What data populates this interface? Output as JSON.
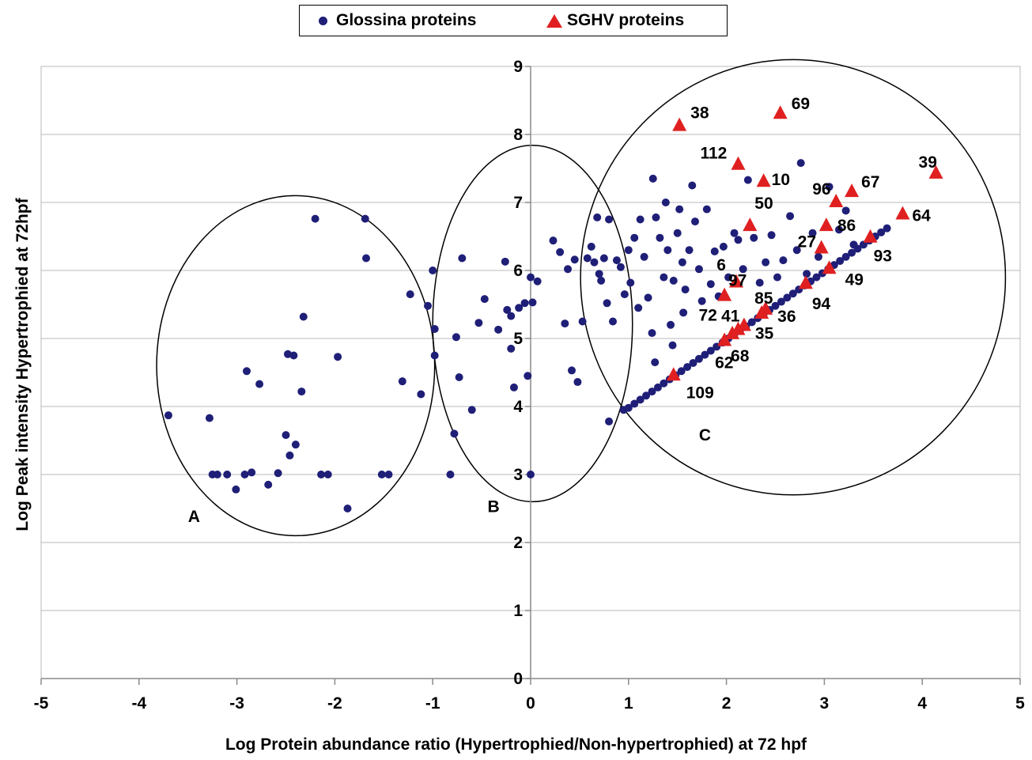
{
  "colors": {
    "glossina": "#1f1f78",
    "sghv": "#e02020",
    "grid": "#b8b8b8",
    "axis": "#8a8a8a"
  },
  "chart_data": {
    "type": "scatter",
    "xlabel": "Log Protein abundance ratio (Hypertrophied/Non-hypertrophied) at 72 hpf",
    "ylabel": "Log Peak intensity Hypertrophied at 72hpf",
    "xlim": [
      -5,
      5
    ],
    "ylim": [
      0,
      9
    ],
    "x_ticks": [
      "-5",
      "-4",
      "-3",
      "-2",
      "-1",
      "0",
      "1",
      "2",
      "3",
      "4",
      "5"
    ],
    "y_ticks": [
      "0",
      "1",
      "2",
      "3",
      "4",
      "5",
      "6",
      "7",
      "8",
      "9"
    ],
    "grid": "horizontal",
    "legend": {
      "placement": "top-center",
      "entries": [
        "Glossina proteins",
        "SGHV proteins"
      ]
    },
    "series": [
      {
        "name": "Glossina proteins",
        "marker": "circle",
        "points": [
          [
            -3.7,
            3.87
          ],
          [
            -3.28,
            3.83
          ],
          [
            -3.25,
            3.0
          ],
          [
            -3.2,
            3.0
          ],
          [
            -3.1,
            3.0
          ],
          [
            -3.01,
            2.78
          ],
          [
            -2.92,
            3.0
          ],
          [
            -2.9,
            4.52
          ],
          [
            -2.85,
            3.03
          ],
          [
            -2.77,
            4.33
          ],
          [
            -2.68,
            2.85
          ],
          [
            -2.58,
            3.02
          ],
          [
            -2.5,
            3.58
          ],
          [
            -2.48,
            4.77
          ],
          [
            -2.46,
            3.28
          ],
          [
            -2.42,
            4.75
          ],
          [
            -2.4,
            3.44
          ],
          [
            -2.34,
            4.22
          ],
          [
            -2.32,
            5.32
          ],
          [
            -2.2,
            6.76
          ],
          [
            -2.14,
            3.0
          ],
          [
            -2.07,
            3.0
          ],
          [
            -1.97,
            4.73
          ],
          [
            -1.87,
            2.5
          ],
          [
            -1.69,
            6.76
          ],
          [
            -1.68,
            6.18
          ],
          [
            -1.52,
            3.0
          ],
          [
            -1.45,
            3.0
          ],
          [
            -1.31,
            4.37
          ],
          [
            -1.23,
            5.65
          ],
          [
            -1.12,
            4.18
          ],
          [
            -1.05,
            5.48
          ],
          [
            -1.0,
            6.0
          ],
          [
            -0.98,
            5.14
          ],
          [
            -0.98,
            4.75
          ],
          [
            -0.82,
            3.0
          ],
          [
            -0.78,
            3.6
          ],
          [
            -0.76,
            5.02
          ],
          [
            -0.73,
            4.43
          ],
          [
            -0.6,
            3.95
          ],
          [
            -0.53,
            5.23
          ],
          [
            -0.47,
            5.58
          ],
          [
            -0.33,
            5.13
          ],
          [
            -0.26,
            6.13
          ],
          [
            -0.24,
            5.42
          ],
          [
            -0.2,
            5.33
          ],
          [
            -0.2,
            4.85
          ],
          [
            -0.17,
            4.28
          ],
          [
            -0.12,
            5.45
          ],
          [
            -0.06,
            5.52
          ],
          [
            -0.03,
            4.45
          ],
          [
            0.0,
            5.9
          ],
          [
            0.0,
            3.0
          ],
          [
            0.02,
            5.53
          ],
          [
            0.07,
            5.84
          ],
          [
            0.23,
            6.44
          ],
          [
            0.3,
            6.27
          ],
          [
            0.35,
            5.22
          ],
          [
            0.38,
            6.02
          ],
          [
            0.42,
            4.53
          ],
          [
            0.45,
            6.16
          ],
          [
            0.48,
            4.36
          ],
          [
            0.53,
            5.25
          ],
          [
            0.58,
            6.18
          ],
          [
            0.62,
            6.35
          ],
          [
            0.65,
            6.12
          ],
          [
            0.68,
            6.78
          ],
          [
            0.7,
            5.95
          ],
          [
            0.72,
            5.85
          ],
          [
            0.75,
            6.18
          ],
          [
            0.78,
            5.52
          ],
          [
            0.8,
            6.75
          ],
          [
            0.84,
            5.25
          ],
          [
            0.88,
            6.15
          ],
          [
            0.92,
            6.05
          ],
          [
            0.96,
            5.65
          ],
          [
            1.0,
            6.3
          ],
          [
            1.02,
            5.82
          ],
          [
            1.06,
            6.48
          ],
          [
            1.1,
            5.45
          ],
          [
            1.12,
            6.75
          ],
          [
            1.16,
            6.2
          ],
          [
            1.2,
            5.6
          ],
          [
            1.25,
            7.35
          ],
          [
            1.28,
            6.78
          ],
          [
            1.32,
            6.48
          ],
          [
            1.36,
            5.9
          ],
          [
            1.38,
            7.0
          ],
          [
            1.4,
            6.3
          ],
          [
            1.43,
            5.2
          ],
          [
            1.46,
            5.85
          ],
          [
            1.5,
            6.55
          ],
          [
            1.52,
            6.9
          ],
          [
            1.55,
            6.12
          ],
          [
            1.58,
            5.72
          ],
          [
            1.62,
            6.3
          ],
          [
            1.65,
            7.25
          ],
          [
            1.68,
            6.72
          ],
          [
            1.72,
            6.02
          ],
          [
            1.75,
            5.55
          ],
          [
            1.8,
            6.9
          ],
          [
            1.84,
            5.8
          ],
          [
            1.88,
            6.28
          ],
          [
            1.92,
            5.62
          ],
          [
            1.97,
            6.35
          ],
          [
            2.02,
            5.9
          ],
          [
            2.08,
            6.55
          ],
          [
            2.12,
            6.45
          ],
          [
            2.17,
            6.02
          ],
          [
            2.22,
            7.33
          ],
          [
            2.28,
            6.48
          ],
          [
            2.34,
            5.82
          ],
          [
            2.4,
            6.12
          ],
          [
            2.46,
            6.52
          ],
          [
            2.52,
            5.9
          ],
          [
            2.58,
            6.15
          ],
          [
            2.65,
            6.8
          ],
          [
            2.72,
            6.3
          ],
          [
            2.76,
            7.58
          ],
          [
            2.82,
            5.95
          ],
          [
            2.88,
            6.55
          ],
          [
            2.94,
            6.2
          ],
          [
            3.05,
            7.23
          ],
          [
            3.15,
            6.6
          ],
          [
            3.22,
            6.88
          ],
          [
            3.3,
            6.38
          ],
          [
            -0.7,
            6.18
          ],
          [
            0.8,
            3.78
          ],
          [
            1.24,
            5.08
          ],
          [
            1.27,
            4.65
          ],
          [
            1.45,
            4.9
          ],
          [
            1.56,
            5.38
          ],
          [
            0.95,
            3.95
          ],
          [
            1.0,
            3.98
          ],
          [
            1.06,
            4.04
          ],
          [
            1.12,
            4.1
          ],
          [
            1.18,
            4.16
          ],
          [
            1.24,
            4.22
          ],
          [
            1.3,
            4.28
          ],
          [
            1.36,
            4.34
          ],
          [
            1.42,
            4.4
          ],
          [
            1.48,
            4.46
          ],
          [
            1.54,
            4.52
          ],
          [
            1.6,
            4.58
          ],
          [
            1.66,
            4.64
          ],
          [
            1.72,
            4.7
          ],
          [
            1.78,
            4.76
          ],
          [
            1.84,
            4.82
          ],
          [
            1.9,
            4.88
          ],
          [
            1.96,
            4.94
          ],
          [
            2.02,
            5.0
          ],
          [
            2.08,
            5.06
          ],
          [
            2.14,
            5.12
          ],
          [
            2.2,
            5.18
          ],
          [
            2.26,
            5.24
          ],
          [
            2.32,
            5.3
          ],
          [
            2.38,
            5.36
          ],
          [
            2.44,
            5.42
          ],
          [
            2.5,
            5.48
          ],
          [
            2.56,
            5.54
          ],
          [
            2.62,
            5.6
          ],
          [
            2.68,
            5.66
          ],
          [
            2.74,
            5.72
          ],
          [
            2.8,
            5.78
          ],
          [
            2.86,
            5.84
          ],
          [
            2.92,
            5.9
          ],
          [
            2.98,
            5.96
          ],
          [
            3.04,
            6.02
          ],
          [
            3.1,
            6.08
          ],
          [
            3.16,
            6.14
          ],
          [
            3.22,
            6.2
          ],
          [
            3.28,
            6.26
          ],
          [
            3.34,
            6.32
          ],
          [
            3.4,
            6.38
          ],
          [
            3.46,
            6.44
          ],
          [
            3.52,
            6.5
          ],
          [
            3.58,
            6.56
          ],
          [
            3.64,
            6.62
          ]
        ]
      },
      {
        "name": "SGHV proteins",
        "marker": "triangle",
        "points": [
          {
            "x": 1.52,
            "y": 8.12,
            "label": "38"
          },
          {
            "x": 2.55,
            "y": 8.3,
            "label": "69"
          },
          {
            "x": 2.12,
            "y": 7.55,
            "label": "112"
          },
          {
            "x": 2.38,
            "y": 7.3,
            "label": "10"
          },
          {
            "x": 4.14,
            "y": 7.42,
            "label": "39"
          },
          {
            "x": 3.28,
            "y": 7.15,
            "label": "67"
          },
          {
            "x": 3.12,
            "y": 7.0,
            "label": "96"
          },
          {
            "x": 2.24,
            "y": 6.65,
            "label": "50"
          },
          {
            "x": 3.8,
            "y": 6.82,
            "label": "64"
          },
          {
            "x": 3.02,
            "y": 6.65,
            "label": "86"
          },
          {
            "x": 3.47,
            "y": 6.48,
            "label": "93"
          },
          {
            "x": 2.97,
            "y": 6.32,
            "label": "27"
          },
          {
            "x": 3.05,
            "y": 6.02,
            "label": "49"
          },
          {
            "x": 2.1,
            "y": 5.82,
            "label": "97"
          },
          {
            "x": 2.81,
            "y": 5.8,
            "label": "94"
          },
          {
            "x": 1.98,
            "y": 5.62,
            "label": "41"
          },
          {
            "x": 2.4,
            "y": 5.42,
            "label": "85"
          },
          {
            "x": 2.36,
            "y": 5.36,
            "label": "36"
          },
          {
            "x": 2.18,
            "y": 5.18,
            "label": "35"
          },
          {
            "x": 2.12,
            "y": 5.12,
            "label": "72"
          },
          {
            "x": 2.06,
            "y": 5.06,
            "label": "68"
          },
          {
            "x": 1.98,
            "y": 4.96,
            "label": "62"
          },
          {
            "x": 1.46,
            "y": 4.45,
            "label": "109"
          },
          {
            "x": 1.9,
            "y": 6.0,
            "label": "6"
          }
        ]
      }
    ],
    "annotations": [
      {
        "label": "A",
        "text_at": [
          -3.5,
          2.3
        ],
        "ellipse": {
          "cx": -2.4,
          "cy": 4.6,
          "rx": 1.42,
          "ry": 2.5
        }
      },
      {
        "label": "B",
        "text_at": [
          -0.44,
          2.45
        ],
        "ellipse": {
          "cx": 0.02,
          "cy": 5.22,
          "rx": 1.02,
          "ry": 2.62
        }
      },
      {
        "label": "C",
        "text_at": [
          1.72,
          3.5
        ],
        "ellipse": {
          "cx": 2.68,
          "cy": 5.9,
          "rx": 2.17,
          "ry": 3.2
        }
      }
    ]
  }
}
